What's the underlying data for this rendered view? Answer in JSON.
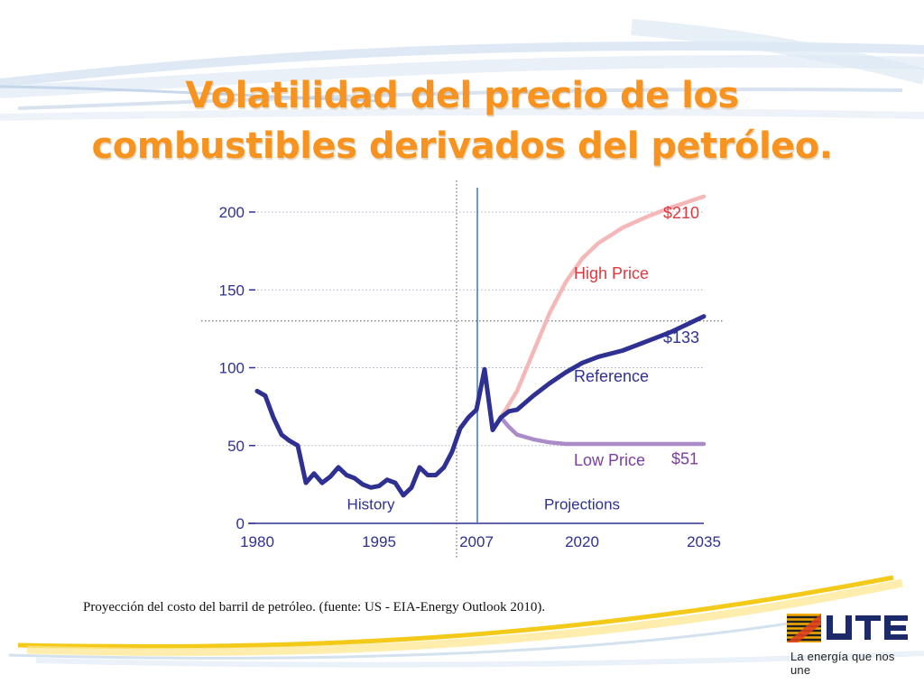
{
  "slide": {
    "title_line1": "Volatilidad del precio de los",
    "title_line2": "combustibles derivados del petróleo.",
    "caption": "Proyección del costo del barril de petróleo. (fuente: US - EIA-Energy Outlook 2010).",
    "logo_tagline": "La energía que nos une",
    "logo_text": "UTE",
    "title_color": "#f7931e"
  },
  "chart_data": {
    "type": "line",
    "title": "",
    "xlabel": "",
    "ylabel": "",
    "xlim": [
      1980,
      2035
    ],
    "ylim": [
      0,
      200
    ],
    "yticks": [
      0,
      50,
      100,
      150,
      200
    ],
    "xtick_labels": [
      {
        "value": 1980,
        "label": "1980"
      },
      {
        "value": 1995,
        "label": "1995"
      },
      {
        "value": 2007,
        "label": "2007"
      },
      {
        "value": 2020,
        "label": "2020"
      },
      {
        "value": 2035,
        "label": "2035"
      }
    ],
    "grid": "horizontal dotted",
    "divider_x": 2007,
    "region_labels": [
      {
        "text": "History",
        "x": 1994,
        "y": 9
      },
      {
        "text": "Projections",
        "x": 2020,
        "y": 9
      }
    ],
    "series": [
      {
        "name": "History",
        "color": "#2e3192",
        "points": [
          [
            1980,
            85
          ],
          [
            1981,
            82
          ],
          [
            1982,
            68
          ],
          [
            1983,
            57
          ],
          [
            1984,
            53
          ],
          [
            1985,
            50
          ],
          [
            1986,
            26
          ],
          [
            1987,
            32
          ],
          [
            1988,
            26
          ],
          [
            1989,
            30
          ],
          [
            1990,
            36
          ],
          [
            1991,
            31
          ],
          [
            1992,
            29
          ],
          [
            1993,
            25
          ],
          [
            1994,
            23
          ],
          [
            1995,
            24
          ],
          [
            1996,
            28
          ],
          [
            1997,
            26
          ],
          [
            1998,
            18
          ],
          [
            1999,
            23
          ],
          [
            2000,
            36
          ],
          [
            2001,
            31
          ],
          [
            2002,
            31
          ],
          [
            2003,
            36
          ],
          [
            2004,
            46
          ],
          [
            2005,
            61
          ],
          [
            2006,
            68
          ],
          [
            2007,
            73
          ],
          [
            2008,
            99
          ],
          [
            2009,
            60
          ],
          [
            2010,
            68
          ]
        ]
      },
      {
        "name": "High Price",
        "label": "High Price",
        "end_label": "$210",
        "color": "#f4b8b8",
        "points": [
          [
            2010,
            68
          ],
          [
            2012,
            85
          ],
          [
            2014,
            110
          ],
          [
            2016,
            135
          ],
          [
            2018,
            155
          ],
          [
            2020,
            170
          ],
          [
            2022,
            180
          ],
          [
            2025,
            190
          ],
          [
            2028,
            197
          ],
          [
            2031,
            203
          ],
          [
            2035,
            210
          ]
        ]
      },
      {
        "name": "Reference",
        "label": "Reference",
        "end_label": "$133",
        "color": "#2e3192",
        "points": [
          [
            2010,
            68
          ],
          [
            2011,
            72
          ],
          [
            2012,
            73
          ],
          [
            2014,
            82
          ],
          [
            2016,
            90
          ],
          [
            2018,
            97
          ],
          [
            2020,
            103
          ],
          [
            2022,
            107
          ],
          [
            2025,
            111
          ],
          [
            2028,
            117
          ],
          [
            2031,
            123
          ],
          [
            2035,
            133
          ]
        ]
      },
      {
        "name": "Low Price",
        "label": "Low Price",
        "end_label": "$51",
        "color": "#a98cc8",
        "points": [
          [
            2010,
            68
          ],
          [
            2011,
            62
          ],
          [
            2012,
            57
          ],
          [
            2014,
            54
          ],
          [
            2016,
            52
          ],
          [
            2018,
            51
          ],
          [
            2020,
            51
          ],
          [
            2025,
            51
          ],
          [
            2030,
            51
          ],
          [
            2035,
            51
          ]
        ]
      }
    ],
    "annotations": [
      {
        "text": "$210",
        "x": 2030,
        "y": 196,
        "color": "#e0383e"
      },
      {
        "text": "High Price",
        "x": 2019,
        "y": 157,
        "color": "#e0383e"
      },
      {
        "text": "$133",
        "x": 2030,
        "y": 116,
        "color": "#2e3192"
      },
      {
        "text": "Reference",
        "x": 2019,
        "y": 91,
        "color": "#2e3192"
      },
      {
        "text": "Low Price",
        "x": 2019,
        "y": 37,
        "color": "#7b3fa0"
      },
      {
        "text": "$51",
        "x": 2031,
        "y": 38,
        "color": "#7b3fa0"
      }
    ]
  }
}
